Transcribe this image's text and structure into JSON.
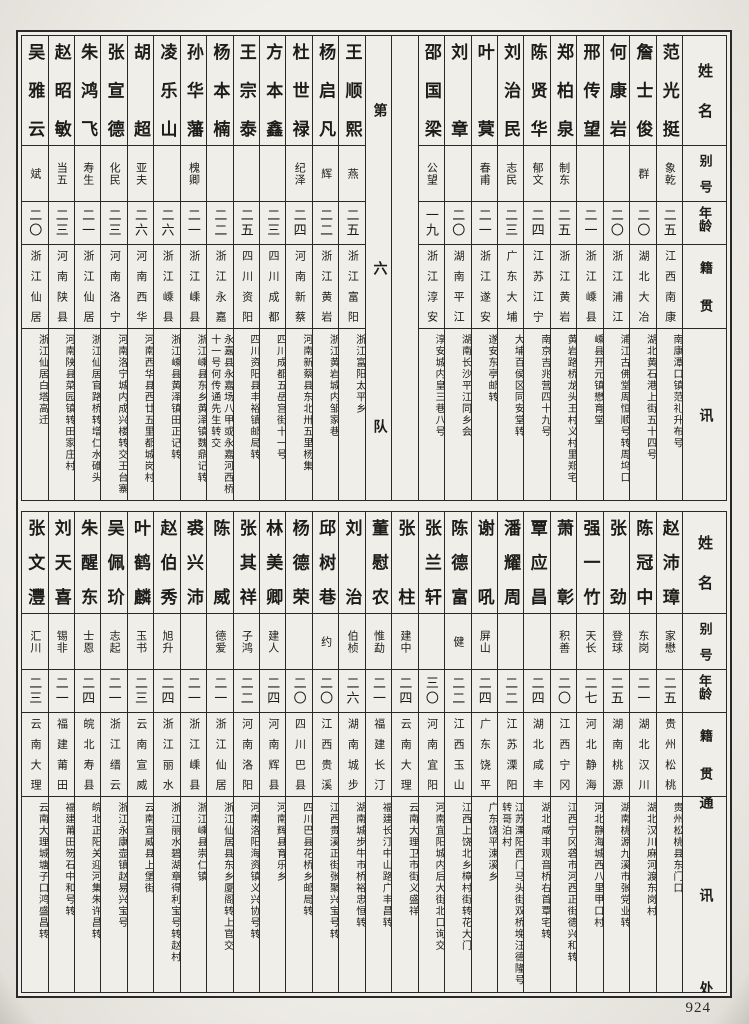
{
  "page": {
    "number": "924"
  },
  "headers": {
    "name": "姓名",
    "alias": "别号",
    "age": "年龄",
    "origin": "籍贯",
    "address": "通讯处"
  },
  "top_table": {
    "entries": [
      {
        "name": "范光挺",
        "alias": "象乾",
        "age": "二五",
        "origin": "江西南康",
        "address": "南康潭口镇范礼升布号"
      },
      {
        "name": "詹士俊",
        "alias": "群",
        "age": "二〇",
        "origin": "湖北大冶",
        "address": "湖北黄石港上街五十四号"
      },
      {
        "name": "何康岩",
        "alias": "",
        "age": "二〇",
        "origin": "浙江浦江",
        "address": "浦江古佛堂周恒顺号转周坞口"
      },
      {
        "name": "邢传望",
        "alias": "",
        "age": "二一",
        "origin": "浙江嵊县",
        "address": "嵊县开元镇懋育堂"
      },
      {
        "name": "郑柏泉",
        "alias": "制东",
        "age": "二五",
        "origin": "浙江黄岩",
        "address": "黄岩路桥龙头王村义村里郑宅"
      },
      {
        "name": "陈贤华",
        "alias": "郁文",
        "age": "二四",
        "origin": "江苏江宁",
        "address": "南京吉兆营四十九号"
      },
      {
        "name": "刘治民",
        "alias": "志民",
        "age": "二三",
        "origin": "广东大埔",
        "address": "大埔百侯区同安堂转"
      },
      {
        "name": "叶蓂",
        "alias": "春甫",
        "age": "二一",
        "origin": "浙江遂安",
        "address": "遂安东亭邮转"
      },
      {
        "name": "刘章",
        "alias": "",
        "age": "二〇",
        "origin": "湖南平江",
        "address": "湖南长沙平江同乡会"
      },
      {
        "name": "邵国梁",
        "alias": "公望",
        "age": "一九",
        "origin": "浙江淳安",
        "address": "淳安城内皇三巷八号"
      },
      {
        "divider": ""
      },
      {
        "divider": "第六队"
      },
      {
        "name": "王顺熙",
        "alias": "燕",
        "age": "二五",
        "origin": "浙江富阳",
        "address": "浙江富阳太平乡"
      },
      {
        "name": "杨启凡",
        "alias": "辉",
        "age": "二二",
        "origin": "浙江黄岩",
        "address": "浙江黄岩城内邹家巷"
      },
      {
        "name": "杜世禄",
        "alias": "纪泽",
        "age": "二四",
        "origin": "河南新蔡",
        "address": "河南新蔡县东北卅五里杨集"
      },
      {
        "name": "方本鑫",
        "alias": "",
        "age": "二三",
        "origin": "四川成都",
        "address": "四川成都五岳宫街十一号"
      },
      {
        "name": "王宗泰",
        "alias": "",
        "age": "二五",
        "origin": "四川资阳",
        "address": "四川资阳县丰裕镇邮局转"
      },
      {
        "name": "杨本楠",
        "alias": "",
        "age": "二二",
        "origin": "浙江永嘉",
        "address": "永嘉县永嘉场八甲或永嘉河西桥十一号何传通先生转交"
      },
      {
        "name": "孙华藩",
        "alias": "槐卿",
        "age": "二一",
        "origin": "浙江嵊县",
        "address": "浙江嵊县东乡黄泽镇魏鼎记转"
      },
      {
        "name": "凌乐山",
        "alias": "",
        "age": "二六",
        "origin": "浙江嵊县",
        "address": "浙江嵊县黄泽镇田正记转"
      },
      {
        "name": "胡超",
        "alias": "亚夫",
        "age": "二六",
        "origin": "河南西华",
        "address": "河南西华县西廿五里都城岗村"
      },
      {
        "name": "张宣德",
        "alias": "化民",
        "age": "二三",
        "origin": "河南洛宁",
        "address": "河南洛宁城内成兴楼转交王台寨"
      },
      {
        "name": "朱鸿飞",
        "alias": "寿生",
        "age": "二一",
        "origin": "浙江仙居",
        "address": "浙江仙居官路桥转增仁水碓头"
      },
      {
        "name": "赵昭敏",
        "alias": "当五",
        "age": "二三",
        "origin": "河南陕县",
        "address": "河南陕县菜园镇转田家庄村"
      },
      {
        "name": "吴雅云",
        "alias": "斌",
        "age": "二〇",
        "origin": "浙江仙居",
        "address": "浙江仙居白塔高迁"
      }
    ]
  },
  "bottom_table": {
    "entries": [
      {
        "name": "赵沛璋",
        "alias": "家懋",
        "age": "二五",
        "origin": "贵州松桃",
        "address": "贵州松桃县东门口"
      },
      {
        "name": "陈冠中",
        "alias": "东岗",
        "age": "二一",
        "origin": "湖北汉川",
        "address": "湖北汉川麻河渡东岗村"
      },
      {
        "name": "张劲",
        "alias": "登球",
        "age": "二五",
        "origin": "湖南桃源",
        "address": "湖南桃源九溪市张党业转"
      },
      {
        "name": "强一竹",
        "alias": "天长",
        "age": "二七",
        "origin": "河北静海",
        "address": "河北静海城西八里甲口村"
      },
      {
        "name": "萧彰",
        "alias": "积善",
        "age": "二〇",
        "origin": "江西宁冈",
        "address": "江西宁冈砻市河西正街德兴和转"
      },
      {
        "name": "覃应昌",
        "alias": "",
        "age": "二四",
        "origin": "湖北咸丰",
        "address": "湖北咸丰观音桥右首覃宅转"
      },
      {
        "name": "潘耀周",
        "alias": "",
        "age": "二二",
        "origin": "江苏溧阳",
        "address": "江苏溧阳西门马头街双桥堍汪德隆号转哥泊村"
      },
      {
        "name": "谢吼",
        "alias": "屏山",
        "age": "二四",
        "origin": "广东饶平",
        "address": "广东饶平涑溪乡"
      },
      {
        "name": "陈德富",
        "alias": "健",
        "age": "二二",
        "origin": "江西玉山",
        "address": "江西上饶北乡樟村街转花大门"
      },
      {
        "name": "张兰轩",
        "alias": "",
        "age": "三〇",
        "origin": "河南宜阳",
        "address": "河南宜阳城内后大街北口询交"
      },
      {
        "name": "张柱",
        "alias": "建中",
        "age": "二四",
        "origin": "云南大理",
        "address": "云南大理卫市街义盛祥"
      },
      {
        "name": "董慰农",
        "alias": "惟勐",
        "age": "二一",
        "origin": "福建长汀",
        "address": "福建长汀中山路广丰昌转"
      },
      {
        "name": "刘治",
        "alias": "伯桢",
        "age": "二六",
        "origin": "湖南城步",
        "address": "湖南城步牛市桥裕忠恒转"
      },
      {
        "name": "邱树巷",
        "alias": "约",
        "age": "二〇",
        "origin": "江西贵溪",
        "address": "江西贵溪正街张聚兴宝号转"
      },
      {
        "name": "杨德荣",
        "alias": "",
        "age": "二〇",
        "origin": "四川巴县",
        "address": "四川巴县花桥乡邮局转"
      },
      {
        "name": "林美卿",
        "alias": "建人",
        "age": "二四",
        "origin": "河南辉县",
        "address": "河南辉县育乐乡"
      },
      {
        "name": "张其祥",
        "alias": "子鸿",
        "age": "二二",
        "origin": "河南洛阳",
        "address": "河南洛阳海资镇义兴协号转"
      },
      {
        "name": "陈威",
        "alias": "德爱",
        "age": "二一",
        "origin": "浙江仙居",
        "address": "浙江仙居县东乡厦阁转上官交"
      },
      {
        "name": "裘兴沛",
        "alias": "",
        "age": "二一",
        "origin": "浙江嵊县",
        "address": "浙江嵊县崇仁镇"
      },
      {
        "name": "赵伯秀",
        "alias": "旭升",
        "age": "二四",
        "origin": "浙江丽水",
        "address": "浙江丽水碧湖章得利宝号转赵村"
      },
      {
        "name": "叶鹤麟",
        "alias": "玉书",
        "age": "二三",
        "origin": "云南宣威",
        "address": "云南宣威县上堡街"
      },
      {
        "name": "吴佩玠",
        "alias": "志起",
        "age": "二一",
        "origin": "浙江缙云",
        "address": "浙江永康壶镇赵易兴宝号"
      },
      {
        "name": "朱醒东",
        "alias": "士恩",
        "age": "二四",
        "origin": "皖北寿县",
        "address": "皖北正阳关迎河集朱许昌转"
      },
      {
        "name": "刘天喜",
        "alias": "锡非",
        "age": "二一",
        "origin": "福建莆田",
        "address": "福建莆田笏石中和号转"
      },
      {
        "name": "张文灃",
        "alias": "汇川",
        "age": "二三",
        "origin": "云南大理",
        "address": "云南大理城塘子口鸿盛昌转"
      }
    ]
  }
}
